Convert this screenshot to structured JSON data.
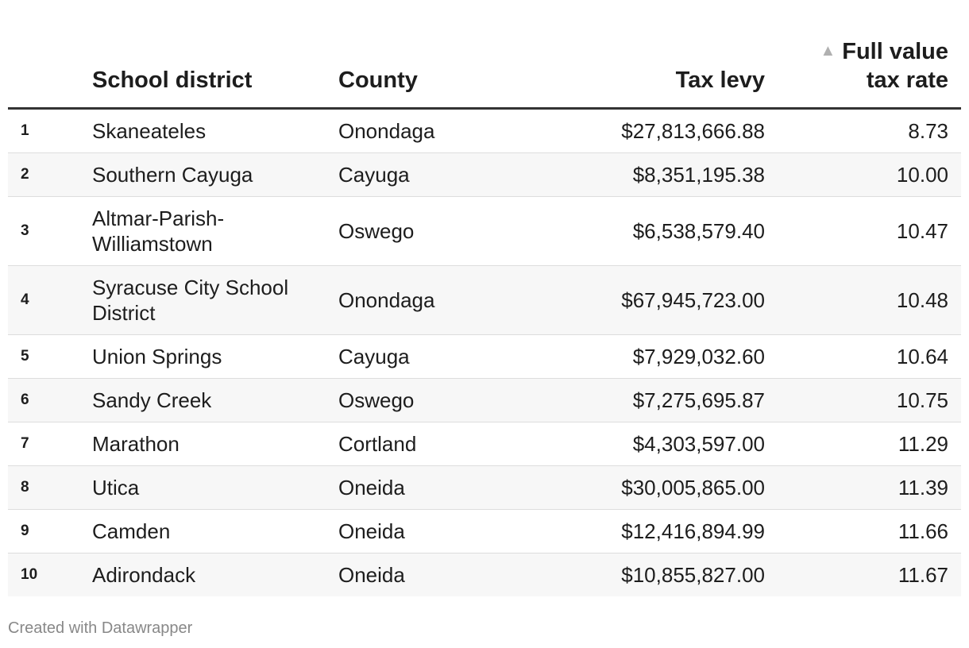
{
  "chart_data": {
    "type": "table",
    "columns": [
      "",
      "School district",
      "County",
      "Tax levy",
      "Full value tax rate"
    ],
    "header": {
      "rank": "",
      "district": "School district",
      "county": "County",
      "levy": "Tax levy",
      "rate_line1": "Full value",
      "rate_line2": "tax rate",
      "sort_indicator": "▲"
    },
    "rows": [
      {
        "rank": "1",
        "district": "Skaneateles",
        "county": "Onondaga",
        "levy": "$27,813,666.88",
        "rate": "8.73"
      },
      {
        "rank": "2",
        "district": "Southern Cayuga",
        "county": "Cayuga",
        "levy": "$8,351,195.38",
        "rate": "10.00"
      },
      {
        "rank": "3",
        "district": "Altmar-Parish-Williamstown",
        "county": "Oswego",
        "levy": "$6,538,579.40",
        "rate": "10.47"
      },
      {
        "rank": "4",
        "district": "Syracuse City School District",
        "county": "Onondaga",
        "levy": "$67,945,723.00",
        "rate": "10.48"
      },
      {
        "rank": "5",
        "district": "Union Springs",
        "county": "Cayuga",
        "levy": "$7,929,032.60",
        "rate": "10.64"
      },
      {
        "rank": "6",
        "district": "Sandy Creek",
        "county": "Oswego",
        "levy": "$7,275,695.87",
        "rate": "10.75"
      },
      {
        "rank": "7",
        "district": "Marathon",
        "county": "Cortland",
        "levy": "$4,303,597.00",
        "rate": "11.29"
      },
      {
        "rank": "8",
        "district": "Utica",
        "county": "Oneida",
        "levy": "$30,005,865.00",
        "rate": "11.39"
      },
      {
        "rank": "9",
        "district": "Camden",
        "county": "Oneida",
        "levy": "$12,416,894.99",
        "rate": "11.66"
      },
      {
        "rank": "10",
        "district": "Adirondack",
        "county": "Oneida",
        "levy": "$10,855,827.00",
        "rate": "11.67"
      }
    ],
    "sorted_by": "Full value tax rate",
    "sort_order": "ascending"
  },
  "footer": {
    "credit": "Created with Datawrapper"
  },
  "colors": {
    "text": "#1d1d1d",
    "header_rule": "#333333",
    "row_divider": "#dddddd",
    "stripe": "#f7f7f7",
    "sort_arrow": "#b0b0b0",
    "footer_text": "#888888"
  }
}
